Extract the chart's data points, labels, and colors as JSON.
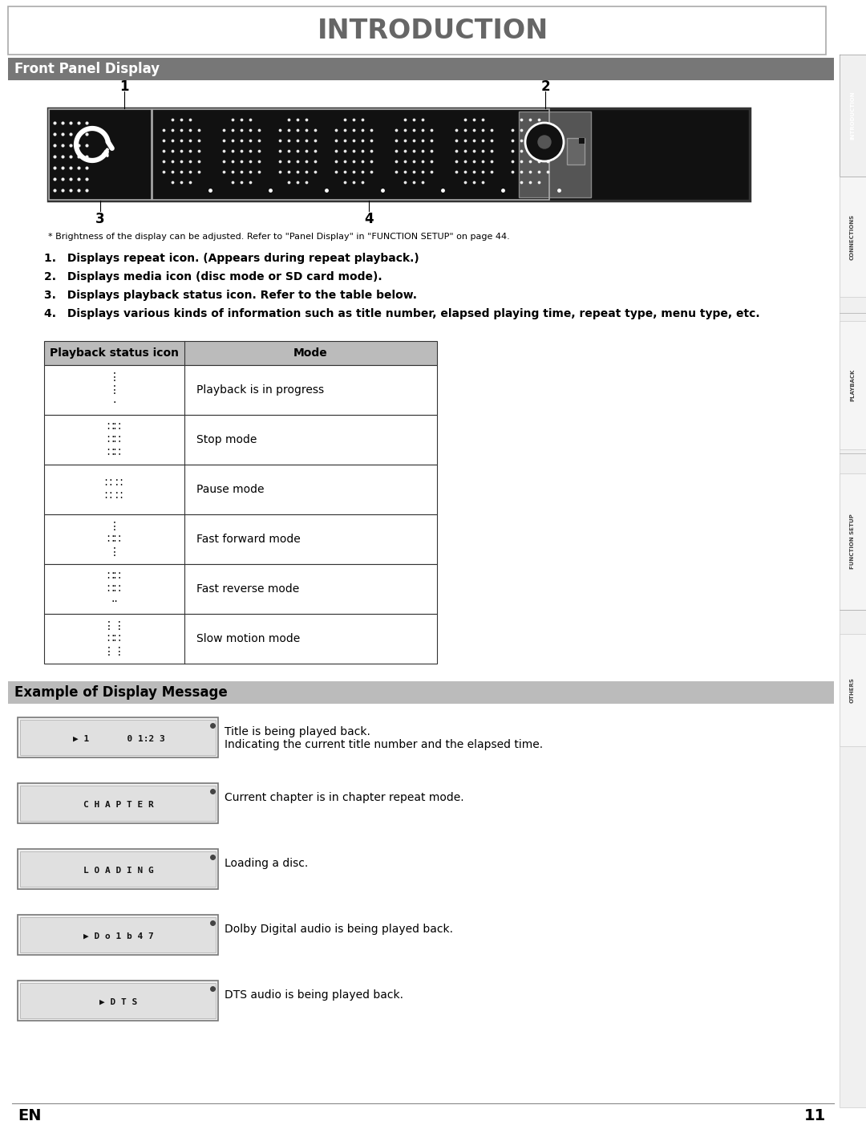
{
  "title": "INTRODUCTION",
  "section1_title": "Front Panel Display",
  "section2_title": "Example of Display Message",
  "footnote": "* Brightness of the display can be adjusted. Refer to \"Panel Display\" in \"FUNCTION SETUP\" on page 44.",
  "numbered_items": [
    "Displays repeat icon. (Appears during repeat playback.)",
    "Displays media icon (disc mode or SD card mode).",
    "Displays playback status icon. Refer to the table below.",
    "Displays various kinds of information such as title number, elapsed playing time, repeat type, menu type, etc."
  ],
  "table_header": [
    "Playback status icon",
    "Mode"
  ],
  "table_rows": [
    [
      "Playback is in progress"
    ],
    [
      "Stop mode"
    ],
    [
      "Pause mode"
    ],
    [
      "Fast forward mode"
    ],
    [
      "Fast reverse mode"
    ],
    [
      "Slow motion mode"
    ]
  ],
  "display_examples": [
    {
      "desc1": "Title is being played back.",
      "desc2": "Indicating the current title number and the elapsed time."
    },
    {
      "desc1": "Current chapter is in chapter repeat mode.",
      "desc2": ""
    },
    {
      "desc1": "Loading a disc.",
      "desc2": ""
    },
    {
      "desc1": "Dolby Digital audio is being played back.",
      "desc2": ""
    },
    {
      "desc1": "DTS audio is being played back.",
      "desc2": ""
    }
  ],
  "sidebar_labels": [
    "INTRODUCTION",
    "CONNECTIONS",
    "PLAYBACK",
    "FUNCTION SETUP",
    "OTHERS"
  ],
  "page_number": "11",
  "en_label": "EN"
}
